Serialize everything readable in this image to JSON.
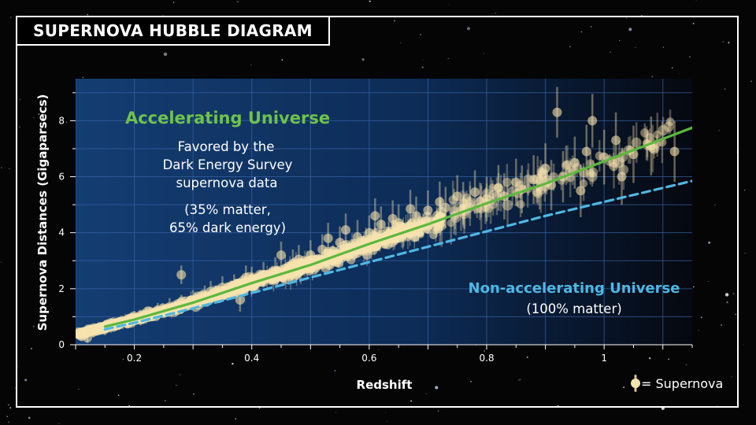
{
  "page": {
    "title": "SUPERNOVA HUBBLE DIAGRAM"
  },
  "chart_data": {
    "type": "scatter",
    "title": "SUPERNOVA HUBBLE DIAGRAM",
    "xlabel": "Redshift",
    "ylabel": "Supernova Distances (Gigaparsecs)",
    "xlim": [
      0.1,
      1.15
    ],
    "ylim": [
      0,
      9.5
    ],
    "x_ticks": [
      0.2,
      0.4,
      0.6,
      0.8,
      1
    ],
    "x_tick_labels": [
      "0.2",
      "0.4",
      "0.6",
      "0.8",
      "1"
    ],
    "y_ticks": [
      0,
      2,
      4,
      6,
      8
    ],
    "y_tick_labels": [
      "0",
      "2",
      "4",
      "6",
      "8"
    ],
    "grid": true,
    "series": [
      {
        "name": "Accelerating Universe",
        "kind": "line",
        "color": "#5cb83c",
        "style": "solid",
        "x": [
          0.15,
          0.2,
          0.3,
          0.4,
          0.5,
          0.6,
          0.7,
          0.8,
          0.9,
          1.0,
          1.1,
          1.15
        ],
        "y": [
          0.65,
          0.9,
          1.5,
          2.2,
          2.85,
          3.6,
          4.3,
          5.05,
          5.75,
          6.55,
          7.35,
          7.75
        ]
      },
      {
        "name": "Non-accelerating Universe",
        "kind": "line",
        "color": "#4fb7e3",
        "style": "dashed",
        "x": [
          0.15,
          0.2,
          0.3,
          0.4,
          0.5,
          0.6,
          0.7,
          0.8,
          0.9,
          1.0,
          1.1,
          1.15
        ],
        "y": [
          0.55,
          0.78,
          1.3,
          1.85,
          2.4,
          2.95,
          3.5,
          4.05,
          4.6,
          5.1,
          5.6,
          5.85
        ]
      },
      {
        "name": "Supernova",
        "kind": "scatter",
        "color": "#f6e3ae",
        "x": [
          0.11,
          0.12,
          0.13,
          0.15,
          0.16,
          0.18,
          0.2,
          0.22,
          0.24,
          0.26,
          0.28,
          0.28,
          0.3,
          0.32,
          0.33,
          0.35,
          0.37,
          0.38,
          0.39,
          0.4,
          0.42,
          0.44,
          0.45,
          0.47,
          0.48,
          0.5,
          0.52,
          0.53,
          0.55,
          0.56,
          0.58,
          0.6,
          0.61,
          0.62,
          0.64,
          0.65,
          0.67,
          0.68,
          0.7,
          0.72,
          0.73,
          0.75,
          0.76,
          0.78,
          0.8,
          0.82,
          0.83,
          0.85,
          0.86,
          0.88,
          0.9,
          0.91,
          0.92,
          0.93,
          0.95,
          0.96,
          0.97,
          0.98,
          1.0,
          1.02,
          1.03,
          1.05,
          1.08,
          1.12
        ],
        "y": [
          0.3,
          0.25,
          0.45,
          0.55,
          0.65,
          0.8,
          0.95,
          1.05,
          1.2,
          1.35,
          1.45,
          2.5,
          1.6,
          1.75,
          1.9,
          2.05,
          2.1,
          1.6,
          2.4,
          2.35,
          2.5,
          2.65,
          3.2,
          2.9,
          3.05,
          3.2,
          3.4,
          3.8,
          3.65,
          4.1,
          3.85,
          4.0,
          4.6,
          4.3,
          4.5,
          4.35,
          4.85,
          4.6,
          4.8,
          5.1,
          4.9,
          5.3,
          5.05,
          5.45,
          5.2,
          5.6,
          5.3,
          5.8,
          5.55,
          5.9,
          6.3,
          5.7,
          8.3,
          6.0,
          6.5,
          5.5,
          6.9,
          8.0,
          6.7,
          7.3,
          6.0,
          6.8,
          7.1,
          6.9
        ]
      }
    ],
    "annotations": [
      {
        "text": "Accelerating Universe",
        "color": "#6fc24a"
      },
      {
        "text": "Favored by the",
        "color": "#ffffff"
      },
      {
        "text": "Dark Energy Survey",
        "color": "#ffffff"
      },
      {
        "text": "supernova data",
        "color": "#ffffff"
      },
      {
        "text": "(35% matter,",
        "color": "#ffffff"
      },
      {
        "text": "65% dark energy)",
        "color": "#ffffff"
      },
      {
        "text": "Non-accelerating Universe",
        "color": "#4fb7e3"
      },
      {
        "text": "(100% matter)",
        "color": "#ffffff"
      }
    ],
    "legend": {
      "symbol": "supernova-marker-icon",
      "label": "= Supernova",
      "placement": "bottom-right"
    }
  }
}
